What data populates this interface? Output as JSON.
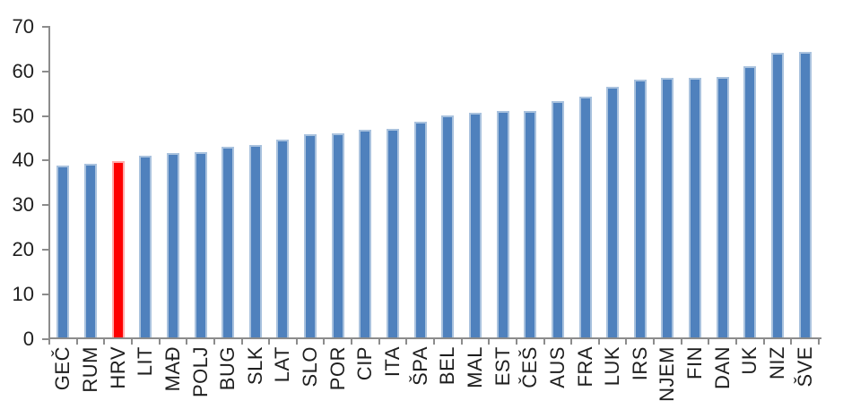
{
  "chart_data": {
    "type": "bar",
    "title": "",
    "xlabel": "",
    "ylabel": "",
    "categories": [
      "GEČ",
      "RUM",
      "HRV",
      "LIT",
      "MAĐ",
      "POLJ",
      "BUG",
      "SLK",
      "LAT",
      "SLO",
      "POR",
      "CIP",
      "ITA",
      "ŠPA",
      "BEL",
      "MAL",
      "EST",
      "ČEŠ",
      "AUS",
      "FRA",
      "LUK",
      "IRS",
      "NJEM",
      "FIN",
      "DAN",
      "UK",
      "NIZ",
      "ŠVE"
    ],
    "values": [
      38.8,
      39.3,
      39.8,
      41.1,
      41.6,
      41.9,
      43.0,
      43.5,
      44.7,
      45.9,
      46.2,
      46.9,
      47.1,
      48.8,
      50.2,
      50.7,
      51.1,
      51.1,
      53.3,
      54.4,
      56.6,
      58.2,
      58.6,
      58.6,
      58.8,
      61.2,
      64.1,
      64.4
    ],
    "highlight_category": "HRV",
    "highlight_index": 2,
    "ylim": [
      0,
      70
    ],
    "y_ticks": [
      0,
      10,
      20,
      30,
      40,
      50,
      60,
      70
    ],
    "grid": false,
    "legend": "none",
    "colors": {
      "bar_default": "#4f81bd",
      "bar_default_edge": "#a9c2de",
      "bar_highlight": "#fe0000",
      "bar_highlight_edge": "#ffadad",
      "axis": "#8c8c8c",
      "text": "#1f1f1f",
      "background": "#ffffff"
    }
  }
}
